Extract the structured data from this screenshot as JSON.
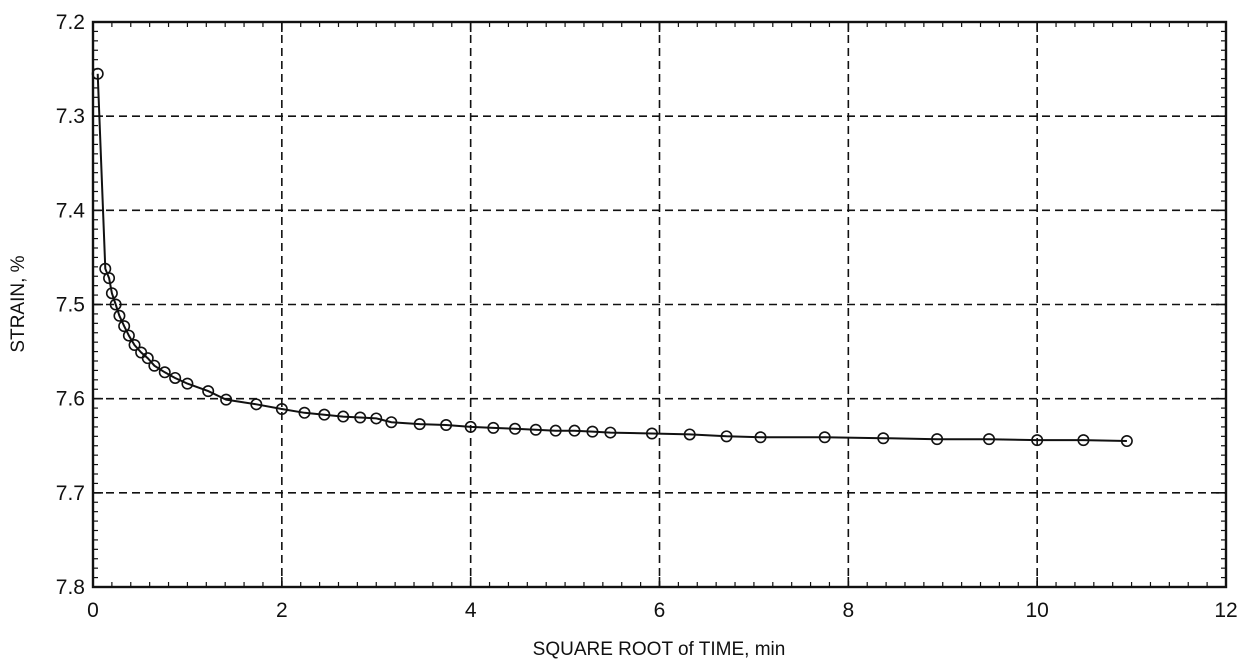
{
  "chart_data": {
    "type": "scatter",
    "title": "",
    "xlabel": "SQUARE ROOT of TIME, min",
    "ylabel": "STRAIN, %",
    "xlim": [
      0,
      12
    ],
    "ylim": [
      7.2,
      7.8
    ],
    "y_inverted": true,
    "grid": true,
    "xticks": [
      "0",
      "2",
      "4",
      "6",
      "8",
      "10",
      "12"
    ],
    "yticks": [
      "7.2",
      "7.3",
      "7.4",
      "7.5",
      "7.6",
      "7.7",
      "7.8"
    ],
    "series": [
      {
        "marker": "open-circle",
        "line": "solid",
        "x": [
          0.05,
          0.13,
          0.17,
          0.2,
          0.24,
          0.28,
          0.33,
          0.38,
          0.44,
          0.51,
          0.58,
          0.65,
          0.76,
          0.87,
          1.0,
          1.22,
          1.41,
          1.73,
          2.0,
          2.24,
          2.45,
          2.65,
          2.83,
          3.0,
          3.16,
          3.46,
          3.74,
          4.0,
          4.24,
          4.47,
          4.69,
          4.9,
          5.1,
          5.29,
          5.48,
          5.92,
          6.32,
          6.71,
          7.07,
          7.75,
          8.37,
          8.94,
          9.49,
          10.0,
          10.49,
          10.95
        ],
        "y": [
          7.255,
          7.462,
          7.472,
          7.488,
          7.5,
          7.512,
          7.523,
          7.533,
          7.543,
          7.551,
          7.557,
          7.565,
          7.572,
          7.578,
          7.584,
          7.592,
          7.601,
          7.606,
          7.611,
          7.615,
          7.617,
          7.619,
          7.62,
          7.621,
          7.625,
          7.627,
          7.628,
          7.63,
          7.631,
          7.632,
          7.633,
          7.634,
          7.634,
          7.635,
          7.636,
          7.637,
          7.638,
          7.64,
          7.641,
          7.641,
          7.642,
          7.643,
          7.643,
          7.644,
          7.644,
          7.645
        ]
      }
    ]
  }
}
